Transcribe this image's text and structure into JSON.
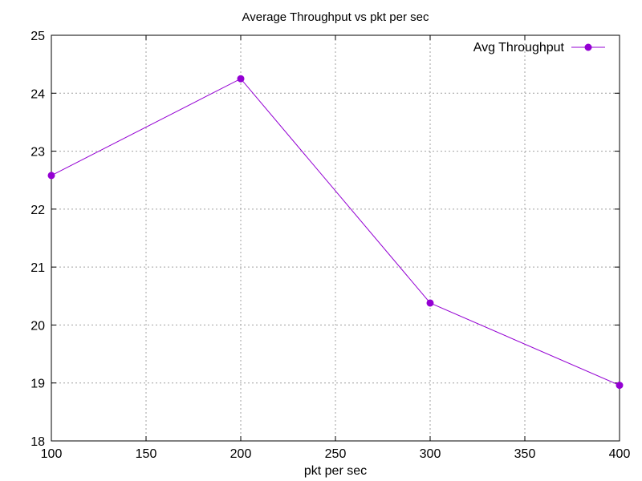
{
  "chart_data": {
    "type": "line",
    "title": "Average Throughput vs pkt per sec",
    "xlabel": "pkt per sec",
    "ylabel": "",
    "x": [
      100,
      200,
      300,
      400
    ],
    "xlim": [
      100,
      400
    ],
    "ylim": [
      18,
      25
    ],
    "x_ticks": [
      100,
      150,
      200,
      250,
      300,
      350,
      400
    ],
    "y_ticks": [
      18,
      19,
      20,
      21,
      22,
      23,
      24,
      25
    ],
    "grid": true,
    "legend_position": "top-right",
    "series": [
      {
        "name": "Avg Throughput",
        "values": [
          22.58,
          24.25,
          20.38,
          18.96
        ],
        "color": "#9400d3",
        "marker": "circle"
      }
    ]
  }
}
